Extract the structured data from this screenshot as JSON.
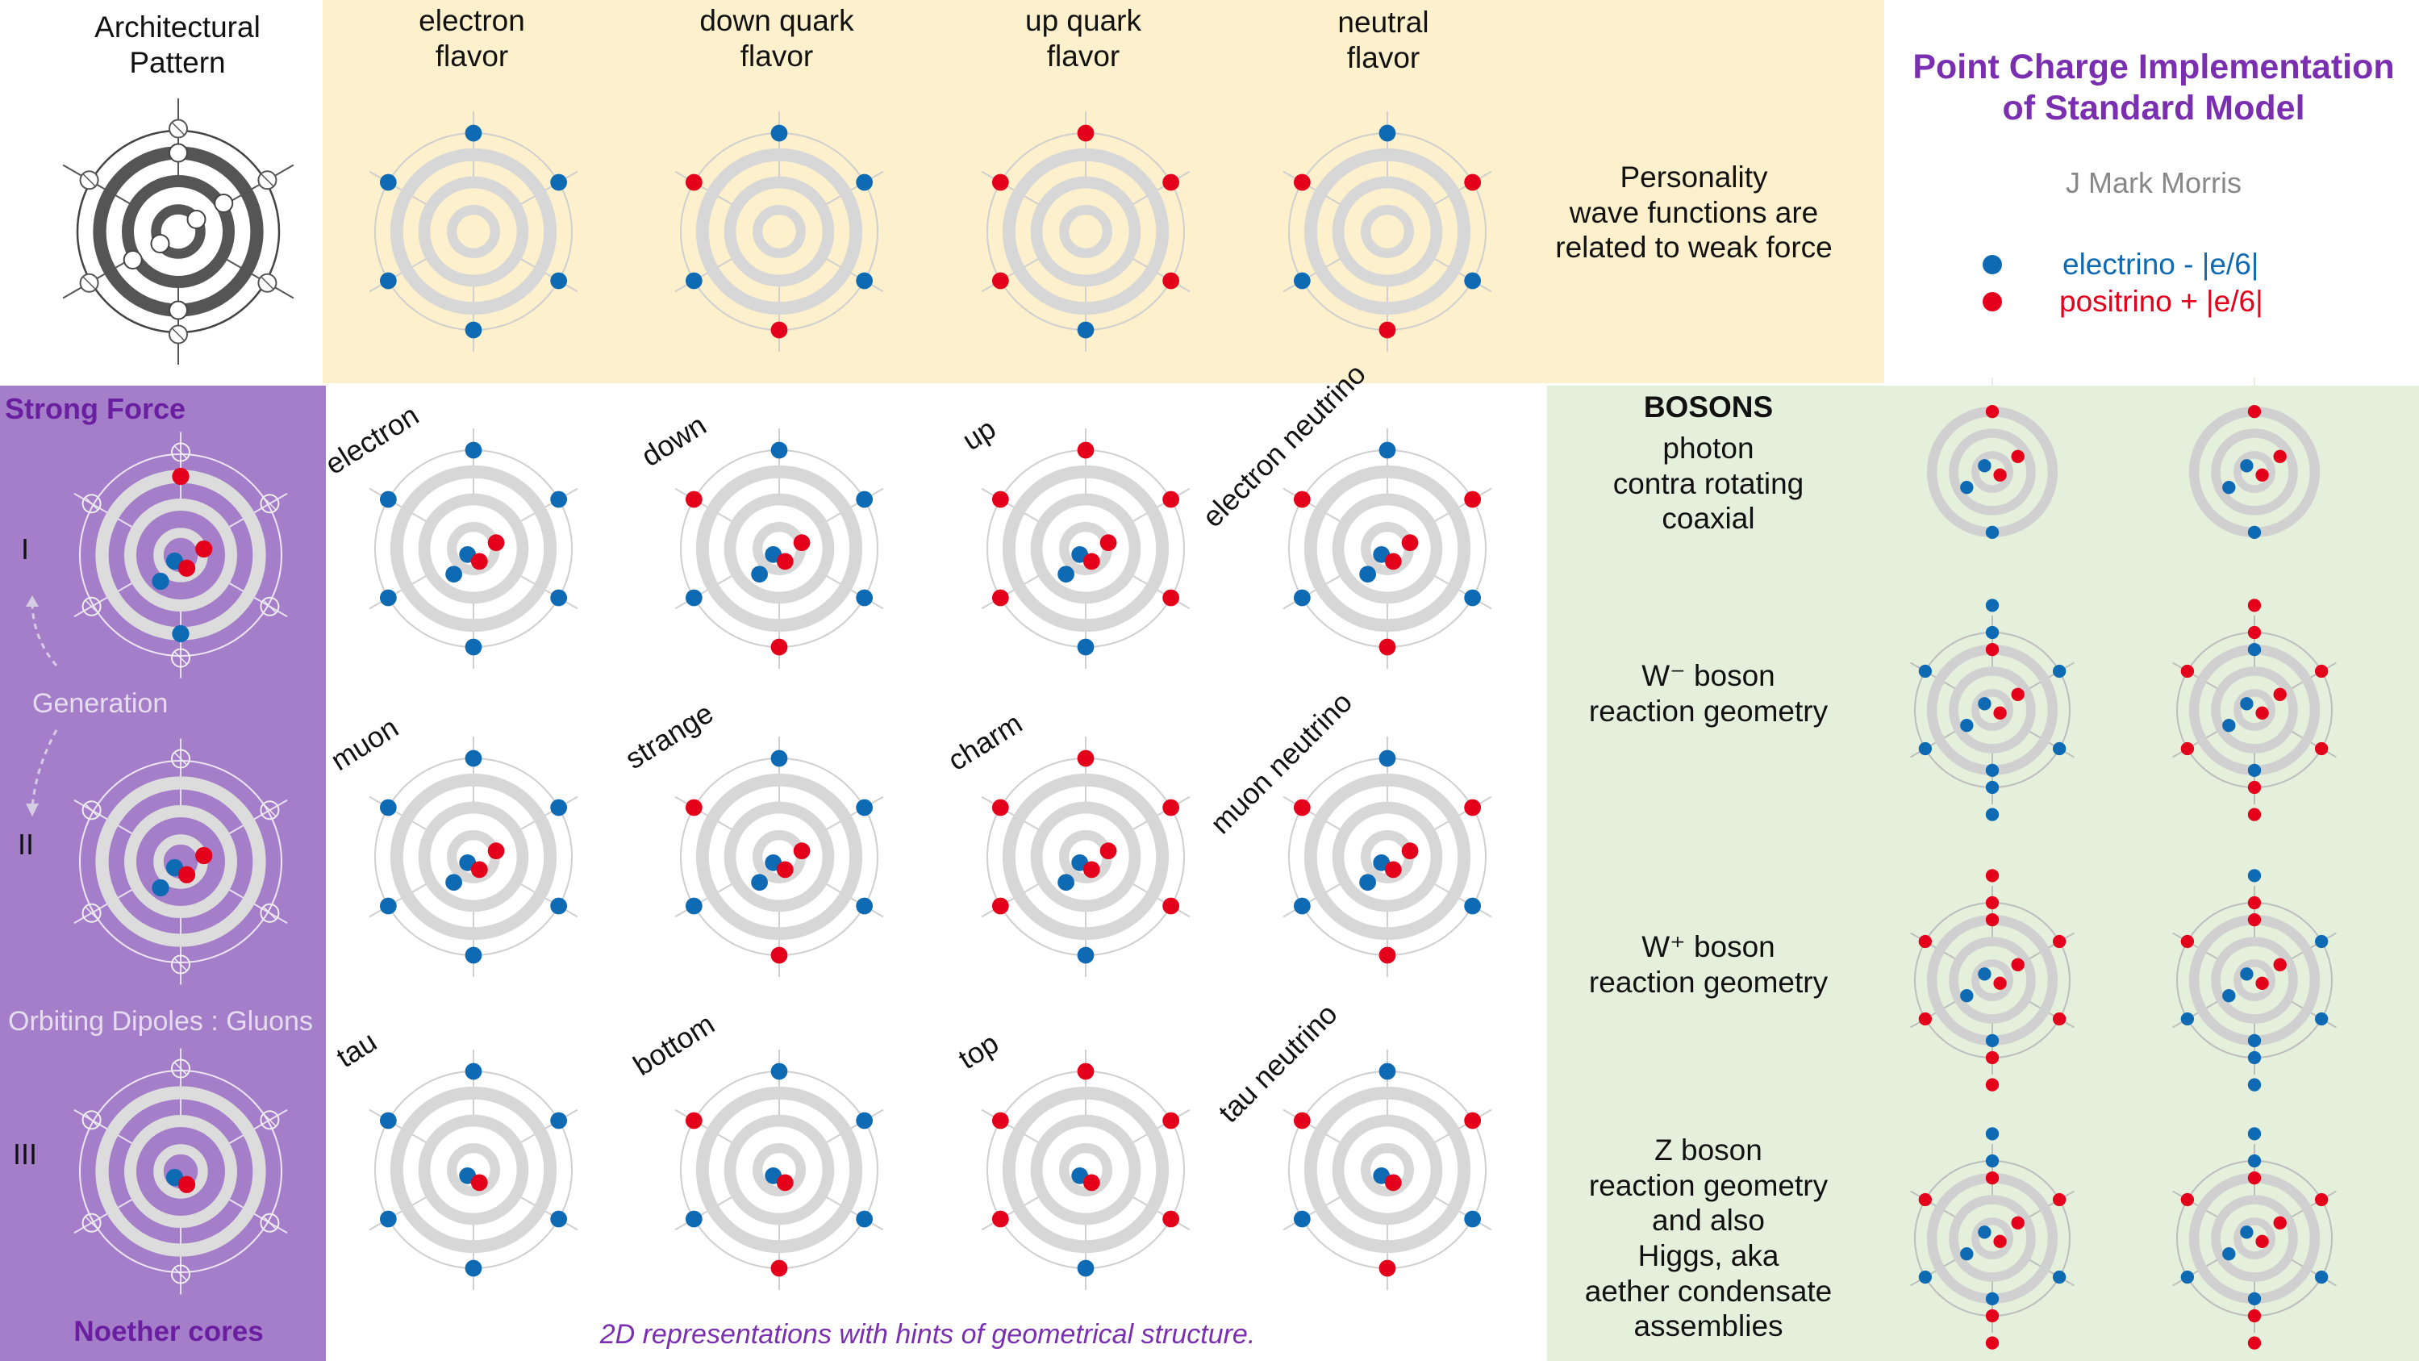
{
  "colors": {
    "electrino": "#0f6ab4",
    "positrino": "#e4001b",
    "ring": "#d7d7d7",
    "spoke": "#bdbdbd",
    "arch_ring": "#555555",
    "purple_panel": "#a57ec9",
    "cream_panel": "#fdf0cc",
    "green_panel": "#e4f0dc",
    "title_purple": "#7a2fb0",
    "author_gray": "#888888"
  },
  "header": {
    "architectural_pattern": "Architectural\nPattern",
    "flavors": [
      "electron\nflavor",
      "down quark\nflavor",
      "up quark\nflavor",
      "neutral\nflavor"
    ],
    "personality_note": "Personality\nwave functions are\nrelated to weak force"
  },
  "title_block": {
    "title": "Point Charge Implementation\nof Standard Model",
    "author": "J Mark Morris",
    "legend": [
      {
        "label": "electrino - |e/6|",
        "color": "#0f6ab4"
      },
      {
        "label": "positrino + |e/6|",
        "color": "#e4001b"
      }
    ]
  },
  "strong_force": {
    "title": "Strong Force",
    "generations": [
      "I",
      "II",
      "III"
    ],
    "generation_label": "Generation",
    "gluons_label": "Orbiting Dipoles : Gluons",
    "footer": "Noether cores"
  },
  "particles": [
    [
      "electron",
      "down",
      "up",
      "electron neutrino"
    ],
    [
      "muon",
      "strange",
      "charm",
      "muon neutrino"
    ],
    [
      "tau",
      "bottom",
      "top",
      "tau neutrino"
    ]
  ],
  "caption": "2D representations with hints of geometrical structure.",
  "bosons": {
    "title": "BOSONS",
    "photon": "photon\ncontra rotating\ncoaxial",
    "w_minus": "W⁻ boson\nreaction geometry",
    "w_plus": "W⁺ boson\nreaction geometry",
    "z": "Z boson\nreaction geometry\nand also\nHiggs, aka\naether condensate\nassemblies"
  }
}
